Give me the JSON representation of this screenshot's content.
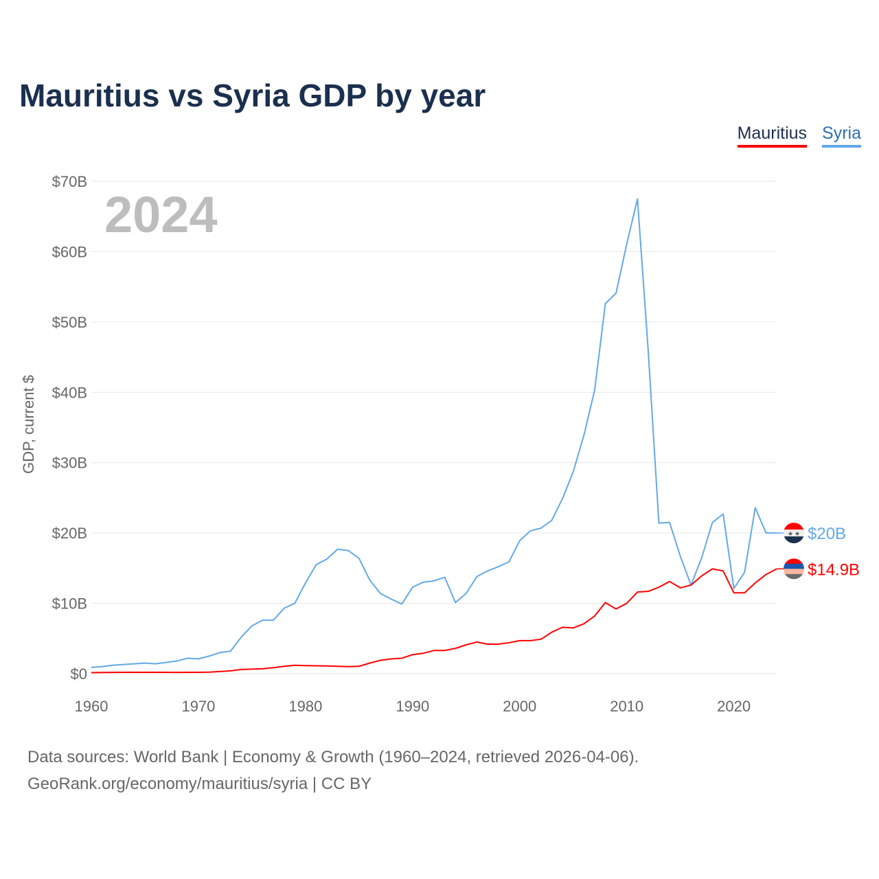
{
  "title": "Mauritius vs Syria GDP by year",
  "year_watermark": "2024",
  "source_line1": "Data sources: World Bank | Economy & Growth (1960–2024, retrieved 2026-04-06).",
  "source_line2": "GeoRank.org/economy/mauritius/syria | CC BY",
  "chart_data": {
    "type": "line",
    "title": "Mauritius vs Syria GDP by year",
    "xlabel": "",
    "ylabel": "GDP, current $",
    "xlim": [
      1960,
      2024
    ],
    "ylim": [
      0,
      70
    ],
    "x_ticks": [
      1960,
      1970,
      1980,
      1990,
      2000,
      2010,
      2020
    ],
    "y_ticks": [
      0,
      10,
      20,
      30,
      40,
      50,
      60,
      70
    ],
    "y_tick_labels": [
      "$0",
      "$10B",
      "$20B",
      "$30B",
      "$40B",
      "$50B",
      "$60B",
      "$70B"
    ],
    "grid": true,
    "legend": "top-right",
    "x": [
      1960,
      1961,
      1962,
      1963,
      1964,
      1965,
      1966,
      1967,
      1968,
      1969,
      1970,
      1971,
      1972,
      1973,
      1974,
      1975,
      1976,
      1977,
      1978,
      1979,
      1980,
      1981,
      1982,
      1983,
      1984,
      1985,
      1986,
      1987,
      1988,
      1989,
      1990,
      1991,
      1992,
      1993,
      1994,
      1995,
      1996,
      1997,
      1998,
      1999,
      2000,
      2001,
      2002,
      2003,
      2004,
      2005,
      2006,
      2007,
      2008,
      2009,
      2010,
      2011,
      2012,
      2013,
      2014,
      2015,
      2016,
      2017,
      2018,
      2019,
      2020,
      2021,
      2022,
      2023,
      2024
    ],
    "series": [
      {
        "name": "Mauritius",
        "color": "#ff0000",
        "end_label": "$14.9B",
        "values": [
          0.15,
          0.17,
          0.18,
          0.2,
          0.2,
          0.2,
          0.2,
          0.2,
          0.18,
          0.2,
          0.2,
          0.22,
          0.3,
          0.4,
          0.6,
          0.65,
          0.7,
          0.85,
          1.05,
          1.2,
          1.15,
          1.12,
          1.1,
          1.05,
          1.0,
          1.05,
          1.5,
          1.9,
          2.1,
          2.2,
          2.7,
          2.9,
          3.3,
          3.3,
          3.6,
          4.1,
          4.5,
          4.2,
          4.2,
          4.4,
          4.7,
          4.7,
          4.9,
          5.9,
          6.6,
          6.5,
          7.1,
          8.2,
          10.1,
          9.2,
          10.0,
          11.6,
          11.7,
          12.3,
          13.1,
          12.2,
          12.6,
          13.9,
          14.9,
          14.6,
          11.5,
          11.5,
          12.9,
          14.1,
          14.9
        ]
      },
      {
        "name": "Syria",
        "color": "#62a8e8",
        "end_label": "$20B",
        "values": [
          0.9,
          1.0,
          1.2,
          1.3,
          1.4,
          1.5,
          1.4,
          1.6,
          1.8,
          2.2,
          2.1,
          2.5,
          3.0,
          3.2,
          5.2,
          6.8,
          7.6,
          7.6,
          9.3,
          10.0,
          12.9,
          15.5,
          16.3,
          17.7,
          17.5,
          16.4,
          13.3,
          11.4,
          10.6,
          9.9,
          12.3,
          13.0,
          13.2,
          13.7,
          10.1,
          11.4,
          13.8,
          14.6,
          15.2,
          15.9,
          18.9,
          20.3,
          20.7,
          21.8,
          24.9,
          28.7,
          33.9,
          40.3,
          52.6,
          54.1,
          61.1,
          67.5,
          46.0,
          21.4,
          21.5,
          16.7,
          12.6,
          16.5,
          21.5,
          22.7,
          12.1,
          14.4,
          23.6,
          20.0,
          20.0
        ]
      }
    ]
  }
}
